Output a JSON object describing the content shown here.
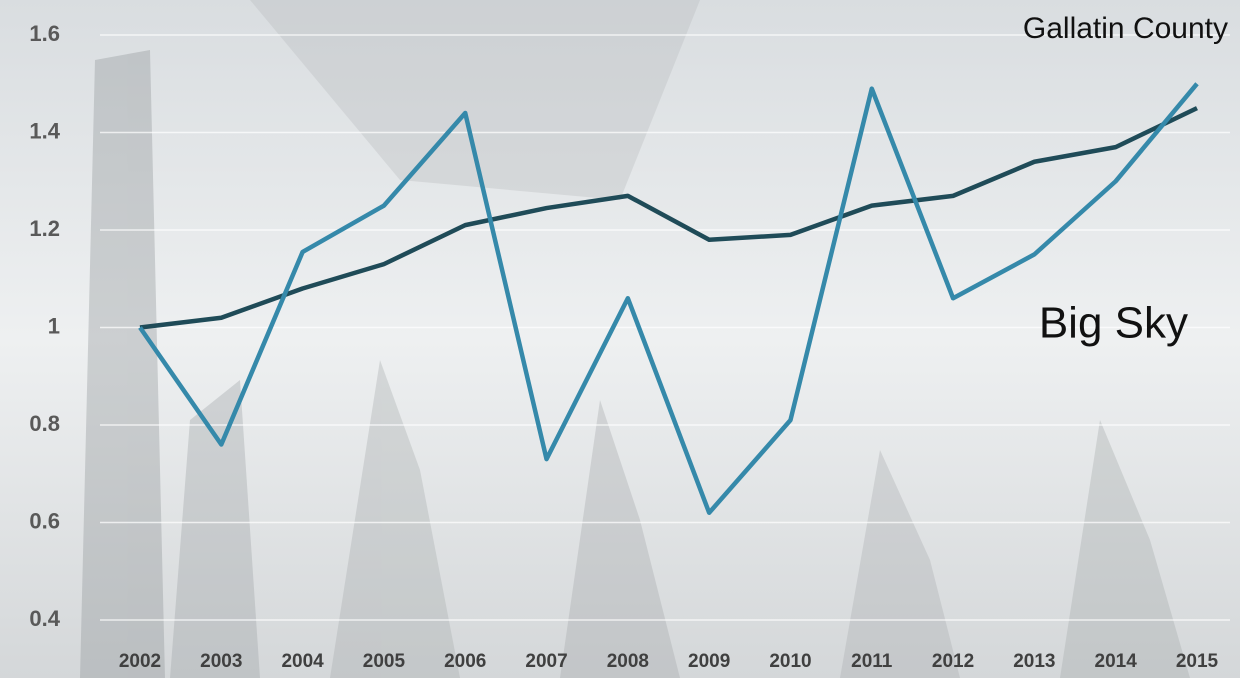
{
  "chart_data": {
    "type": "line",
    "categories": [
      "2002",
      "2003",
      "2004",
      "2005",
      "2006",
      "2007",
      "2008",
      "2009",
      "2010",
      "2011",
      "2012",
      "2013",
      "2014",
      "2015"
    ],
    "series": [
      {
        "name": "Gallatin County",
        "color": "#1f4b58",
        "values": [
          1.0,
          1.02,
          1.08,
          1.13,
          1.21,
          1.245,
          1.27,
          1.18,
          1.19,
          1.25,
          1.27,
          1.34,
          1.37,
          1.45
        ]
      },
      {
        "name": "Big Sky",
        "color": "#3589aa",
        "values": [
          1.0,
          0.76,
          1.155,
          1.25,
          1.44,
          0.73,
          1.06,
          0.62,
          0.81,
          1.49,
          1.06,
          1.15,
          1.3,
          1.5
        ]
      }
    ],
    "ylim": [
      0.4,
      1.6
    ],
    "yticks": [
      1.6,
      1.4,
      1.2,
      1,
      0.8,
      0.6,
      0.4
    ],
    "grid": true
  }
}
